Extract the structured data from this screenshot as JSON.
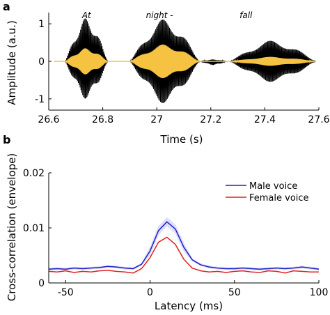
{
  "chart_data": [
    {
      "type": "line",
      "panel_label": "a",
      "xlabel": "Time (s)",
      "ylabel": "Amplitude (a.u.)",
      "xlim": [
        26.6,
        27.6
      ],
      "ylim": [
        -1.3,
        1.3
      ],
      "x_ticks": [
        26.6,
        26.8,
        27,
        27.2,
        27.4,
        27.6
      ],
      "x_tick_labels": [
        "26.6",
        "26.8",
        "27",
        "27.2",
        "27.4",
        "27.6"
      ],
      "y_ticks": [
        1,
        0,
        -1
      ],
      "y_tick_labels": [
        "1",
        "0",
        "-1"
      ],
      "annotations": [
        {
          "text": "At",
          "x": 26.74
        },
        {
          "text": "night -",
          "x": 27.01
        },
        {
          "text": "fall",
          "x": 27.33
        }
      ],
      "series": [
        {
          "role": "waveform",
          "color": "#000000",
          "segments": [
            {
              "start": 26.66,
              "end": 26.82,
              "peak_max": 1.15,
              "peak_min": -1.0
            },
            {
              "start": 26.9,
              "end": 27.16,
              "peak_max": 1.12,
              "peak_min": -1.12
            },
            {
              "start": 27.16,
              "end": 27.26,
              "peak_max": 0.05,
              "peak_min": -0.1
            },
            {
              "start": 27.27,
              "end": 27.59,
              "peak_max": 0.55,
              "peak_min": -0.55
            }
          ]
        },
        {
          "role": "envelope-filtered waveform",
          "color": "#f5c242",
          "segments": [
            {
              "start": 26.66,
              "end": 26.82,
              "peak_max": 0.35,
              "peak_min": -0.35
            },
            {
              "start": 26.9,
              "end": 27.16,
              "peak_max": 0.45,
              "peak_min": -0.45
            },
            {
              "start": 27.27,
              "end": 27.59,
              "peak_max": 0.12,
              "peak_min": -0.12
            }
          ]
        }
      ],
      "grid": false
    },
    {
      "type": "line",
      "panel_label": "b",
      "xlabel": "Latency (ms)",
      "ylabel": "Cross-correlation (envelope)",
      "xlim": [
        -60,
        100
      ],
      "ylim": [
        0,
        0.02
      ],
      "x_ticks": [
        -50,
        0,
        50,
        100
      ],
      "x_tick_labels": [
        "-50",
        "0",
        "50",
        "100"
      ],
      "y_ticks": [
        0,
        0.01,
        0.02
      ],
      "y_tick_labels": [
        "0",
        "0.01",
        "0.02"
      ],
      "legend_position": "top-right",
      "grid": false,
      "x": [
        -60,
        -55,
        -50,
        -45,
        -40,
        -35,
        -30,
        -25,
        -20,
        -15,
        -10,
        -5,
        0,
        5,
        10,
        15,
        20,
        25,
        30,
        35,
        40,
        45,
        50,
        55,
        60,
        65,
        70,
        75,
        80,
        85,
        90,
        95,
        100
      ],
      "series": [
        {
          "name": "Male voice",
          "color": "#1f1fc8",
          "values": [
            0.0025,
            0.0026,
            0.0025,
            0.0027,
            0.0026,
            0.0027,
            0.0028,
            0.003,
            0.0029,
            0.0027,
            0.0026,
            0.0034,
            0.0058,
            0.0095,
            0.0111,
            0.0098,
            0.0065,
            0.0042,
            0.0033,
            0.0029,
            0.0027,
            0.0026,
            0.0026,
            0.0027,
            0.0026,
            0.0025,
            0.0026,
            0.0027,
            0.0026,
            0.0027,
            0.0029,
            0.0027,
            0.0025
          ]
        },
        {
          "name": "Female voice",
          "color": "#e02020",
          "values": [
            0.0021,
            0.002,
            0.0022,
            0.0019,
            0.0021,
            0.002,
            0.0022,
            0.0023,
            0.0021,
            0.002,
            0.0018,
            0.0026,
            0.0046,
            0.0074,
            0.0083,
            0.007,
            0.0043,
            0.0027,
            0.0022,
            0.002,
            0.0021,
            0.0019,
            0.0021,
            0.0022,
            0.002,
            0.0019,
            0.0022,
            0.0021,
            0.0018,
            0.0022,
            0.0021,
            0.002,
            0.002
          ]
        }
      ]
    }
  ]
}
